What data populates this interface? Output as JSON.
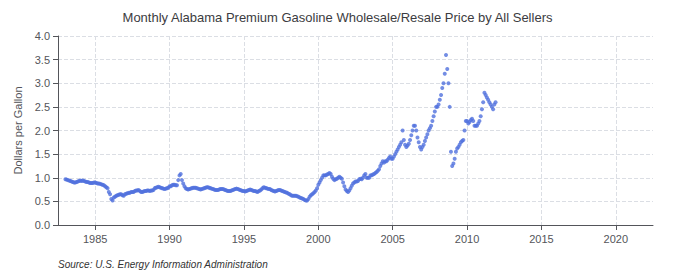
{
  "chart_data": {
    "type": "scatter",
    "title": "Monthly Alabama Premium Gasoline Wholesale/Resale Price by All Sellers",
    "ylabel": "Dollars per Gallon",
    "annotation": "Source: U.S. Energy Information Administration",
    "xlim": [
      1982.5,
      2022.5
    ],
    "ylim": [
      0.0,
      4.0
    ],
    "xticks": [
      1985,
      1990,
      1995,
      2000,
      2005,
      2010,
      2015,
      2020
    ],
    "yticks": [
      {
        "value": 0.0,
        "label": "0.0"
      },
      0.5,
      {
        "value": 1.0,
        "label": "1.0"
      },
      1.5,
      {
        "value": 2.0,
        "label": "2.0"
      },
      2.5,
      {
        "value": 3.0,
        "label": "3.0"
      },
      3.5,
      {
        "value": 4.0,
        "label": "4.0"
      }
    ],
    "grid": true,
    "x": [
      1983.0,
      1983.083,
      1983.167,
      1983.25,
      1983.333,
      1983.417,
      1983.5,
      1983.583,
      1983.667,
      1983.75,
      1983.833,
      1983.917,
      1984.0,
      1984.083,
      1984.167,
      1984.25,
      1984.333,
      1984.417,
      1984.5,
      1984.583,
      1984.667,
      1984.75,
      1984.833,
      1984.917,
      1985.0,
      1985.083,
      1985.167,
      1985.25,
      1985.333,
      1985.417,
      1985.5,
      1985.583,
      1985.667,
      1985.75,
      1985.833,
      1985.917,
      1986.0,
      1986.083,
      1986.167,
      1986.25,
      1986.333,
      1986.417,
      1986.5,
      1986.583,
      1986.667,
      1986.75,
      1986.833,
      1986.917,
      1987.0,
      1987.083,
      1987.167,
      1987.25,
      1987.333,
      1987.417,
      1987.5,
      1987.583,
      1987.667,
      1987.75,
      1987.833,
      1987.917,
      1988.0,
      1988.083,
      1988.167,
      1988.25,
      1988.333,
      1988.417,
      1988.5,
      1988.583,
      1988.667,
      1988.75,
      1988.833,
      1988.917,
      1989.0,
      1989.083,
      1989.167,
      1989.25,
      1989.333,
      1989.417,
      1989.5,
      1989.583,
      1989.667,
      1989.75,
      1989.833,
      1989.917,
      1990.0,
      1990.083,
      1990.167,
      1990.25,
      1990.333,
      1990.417,
      1990.5,
      1990.583,
      1990.667,
      1990.75,
      1990.833,
      1990.917,
      1991.0,
      1991.083,
      1991.167,
      1991.25,
      1991.333,
      1991.417,
      1991.5,
      1991.583,
      1991.667,
      1991.75,
      1991.833,
      1991.917,
      1992.0,
      1992.083,
      1992.167,
      1992.25,
      1992.333,
      1992.417,
      1992.5,
      1992.583,
      1992.667,
      1992.75,
      1992.833,
      1992.917,
      1993.0,
      1993.083,
      1993.167,
      1993.25,
      1993.333,
      1993.417,
      1993.5,
      1993.583,
      1993.667,
      1993.75,
      1993.833,
      1993.917,
      1994.0,
      1994.083,
      1994.167,
      1994.25,
      1994.333,
      1994.417,
      1994.5,
      1994.583,
      1994.667,
      1994.75,
      1994.833,
      1994.917,
      1995.0,
      1995.083,
      1995.167,
      1995.25,
      1995.333,
      1995.417,
      1995.5,
      1995.583,
      1995.667,
      1995.75,
      1995.833,
      1995.917,
      1996.0,
      1996.083,
      1996.167,
      1996.25,
      1996.333,
      1996.417,
      1996.5,
      1996.583,
      1996.667,
      1996.75,
      1996.833,
      1996.917,
      1997.0,
      1997.083,
      1997.167,
      1997.25,
      1997.333,
      1997.417,
      1997.5,
      1997.583,
      1997.667,
      1997.75,
      1997.833,
      1997.917,
      1998.0,
      1998.083,
      1998.167,
      1998.25,
      1998.333,
      1998.417,
      1998.5,
      1998.583,
      1998.667,
      1998.75,
      1998.833,
      1998.917,
      1999.0,
      1999.083,
      1999.167,
      1999.25,
      1999.333,
      1999.417,
      1999.5,
      1999.583,
      1999.667,
      1999.75,
      1999.833,
      1999.917,
      2000.0,
      2000.083,
      2000.167,
      2000.25,
      2000.333,
      2000.417,
      2000.5,
      2000.583,
      2000.667,
      2000.75,
      2000.833,
      2000.917,
      2001.0,
      2001.083,
      2001.167,
      2001.25,
      2001.333,
      2001.417,
      2001.5,
      2001.583,
      2001.667,
      2001.75,
      2001.833,
      2001.917,
      2002.0,
      2002.083,
      2002.167,
      2002.25,
      2002.333,
      2002.417,
      2002.5,
      2002.583,
      2002.667,
      2002.75,
      2002.833,
      2002.917,
      2003.0,
      2003.083,
      2003.167,
      2003.25,
      2003.333,
      2003.417,
      2003.5,
      2003.583,
      2003.667,
      2003.75,
      2003.833,
      2003.917,
      2004.0,
      2004.083,
      2004.167,
      2004.25,
      2004.333,
      2004.417,
      2004.5,
      2004.583,
      2004.667,
      2004.75,
      2004.833,
      2004.917,
      2005.0,
      2005.083,
      2005.167,
      2005.25,
      2005.333,
      2005.417,
      2005.5,
      2005.583,
      2005.667,
      2005.75,
      2005.833,
      2005.917,
      2006.0,
      2006.083,
      2006.167,
      2006.25,
      2006.333,
      2006.417,
      2006.5,
      2006.583,
      2006.667,
      2006.75,
      2006.833,
      2006.917,
      2007.0,
      2007.083,
      2007.167,
      2007.25,
      2007.333,
      2007.417,
      2007.5,
      2007.583,
      2007.667,
      2007.75,
      2007.833,
      2007.917,
      2008.0,
      2008.083,
      2008.167,
      2008.25,
      2008.333,
      2008.417,
      2008.5,
      2008.583,
      2008.667,
      2008.75,
      2008.833,
      2008.917,
      2009.0,
      2009.083,
      2009.167,
      2009.25,
      2009.333,
      2009.417,
      2009.5,
      2009.583,
      2009.667,
      2009.75,
      2009.833,
      2009.917,
      2010.0,
      2010.083,
      2010.167,
      2010.25,
      2010.333,
      2010.417,
      2010.5,
      2010.583,
      2010.667,
      2010.75,
      2010.833,
      2010.917,
      2011.0,
      2011.083,
      2011.167,
      2011.25,
      2011.333,
      2011.417,
      2011.5,
      2011.583,
      2011.667,
      2011.75,
      2011.833,
      2011.917
    ],
    "values": [
      0.97,
      0.96,
      0.95,
      0.94,
      0.93,
      0.92,
      0.91,
      0.9,
      0.9,
      0.91,
      0.92,
      0.93,
      0.94,
      0.93,
      0.94,
      0.93,
      0.92,
      0.91,
      0.91,
      0.9,
      0.89,
      0.89,
      0.89,
      0.9,
      0.9,
      0.89,
      0.88,
      0.88,
      0.87,
      0.86,
      0.85,
      0.84,
      0.82,
      0.8,
      0.78,
      0.7,
      0.65,
      0.55,
      0.52,
      0.58,
      0.6,
      0.62,
      0.63,
      0.64,
      0.65,
      0.65,
      0.63,
      0.62,
      0.65,
      0.66,
      0.67,
      0.68,
      0.68,
      0.7,
      0.7,
      0.7,
      0.72,
      0.73,
      0.73,
      0.74,
      0.72,
      0.7,
      0.7,
      0.71,
      0.72,
      0.72,
      0.73,
      0.73,
      0.72,
      0.73,
      0.73,
      0.74,
      0.78,
      0.79,
      0.8,
      0.81,
      0.8,
      0.79,
      0.78,
      0.77,
      0.76,
      0.77,
      0.78,
      0.79,
      0.82,
      0.82,
      0.84,
      0.85,
      0.85,
      0.84,
      0.84,
      0.95,
      1.05,
      1.08,
      0.95,
      0.88,
      0.82,
      0.78,
      0.76,
      0.75,
      0.76,
      0.77,
      0.78,
      0.79,
      0.79,
      0.79,
      0.78,
      0.77,
      0.76,
      0.75,
      0.76,
      0.77,
      0.78,
      0.79,
      0.8,
      0.8,
      0.79,
      0.78,
      0.77,
      0.76,
      0.75,
      0.74,
      0.74,
      0.74,
      0.75,
      0.76,
      0.76,
      0.76,
      0.75,
      0.74,
      0.73,
      0.72,
      0.72,
      0.72,
      0.73,
      0.74,
      0.75,
      0.76,
      0.77,
      0.76,
      0.75,
      0.74,
      0.73,
      0.72,
      0.72,
      0.71,
      0.72,
      0.73,
      0.74,
      0.75,
      0.74,
      0.73,
      0.72,
      0.72,
      0.71,
      0.7,
      0.72,
      0.73,
      0.75,
      0.78,
      0.8,
      0.79,
      0.78,
      0.77,
      0.76,
      0.76,
      0.74,
      0.73,
      0.72,
      0.71,
      0.72,
      0.73,
      0.74,
      0.74,
      0.73,
      0.72,
      0.71,
      0.7,
      0.69,
      0.68,
      0.66,
      0.65,
      0.63,
      0.62,
      0.62,
      0.62,
      0.62,
      0.61,
      0.6,
      0.58,
      0.57,
      0.56,
      0.55,
      0.53,
      0.52,
      0.52,
      0.55,
      0.6,
      0.63,
      0.65,
      0.67,
      0.7,
      0.73,
      0.78,
      0.85,
      0.9,
      0.95,
      1.0,
      1.05,
      1.05,
      1.05,
      1.07,
      1.08,
      1.1,
      1.08,
      1.02,
      0.98,
      0.95,
      0.97,
      0.98,
      1.0,
      1.02,
      1.0,
      0.98,
      0.9,
      0.82,
      0.75,
      0.72,
      0.7,
      0.73,
      0.78,
      0.83,
      0.88,
      0.9,
      0.92,
      0.92,
      0.93,
      0.97,
      0.98,
      0.97,
      1.0,
      1.05,
      1.08,
      1.0,
      1.0,
      1.0,
      1.05,
      1.05,
      1.07,
      1.08,
      1.1,
      1.12,
      1.15,
      1.18,
      1.25,
      1.3,
      1.35,
      1.32,
      1.35,
      1.35,
      1.38,
      1.42,
      1.45,
      1.4,
      1.4,
      1.45,
      1.5,
      1.55,
      1.6,
      1.65,
      1.7,
      1.75,
      2.0,
      1.8,
      1.7,
      1.65,
      1.68,
      1.72,
      1.8,
      1.9,
      2.0,
      2.1,
      2.1,
      2.0,
      1.85,
      1.75,
      1.65,
      1.6,
      1.65,
      1.7,
      1.78,
      1.85,
      1.92,
      2.0,
      2.05,
      2.1,
      2.2,
      2.3,
      2.4,
      2.5,
      2.5,
      2.55,
      2.65,
      2.75,
      2.9,
      3.0,
      3.2,
      3.6,
      3.3,
      3.0,
      2.5,
      1.55,
      1.25,
      1.3,
      1.4,
      1.55,
      1.62,
      1.65,
      1.7,
      1.75,
      1.78,
      1.8,
      2.0,
      2.2,
      2.2,
      2.15,
      2.18,
      2.22,
      2.25,
      2.2,
      2.1,
      2.1,
      2.1,
      2.15,
      2.2,
      2.3,
      2.45,
      2.6,
      2.8,
      2.75,
      2.7,
      2.65,
      2.6,
      2.55,
      2.5,
      2.45,
      2.55,
      2.6
    ]
  }
}
